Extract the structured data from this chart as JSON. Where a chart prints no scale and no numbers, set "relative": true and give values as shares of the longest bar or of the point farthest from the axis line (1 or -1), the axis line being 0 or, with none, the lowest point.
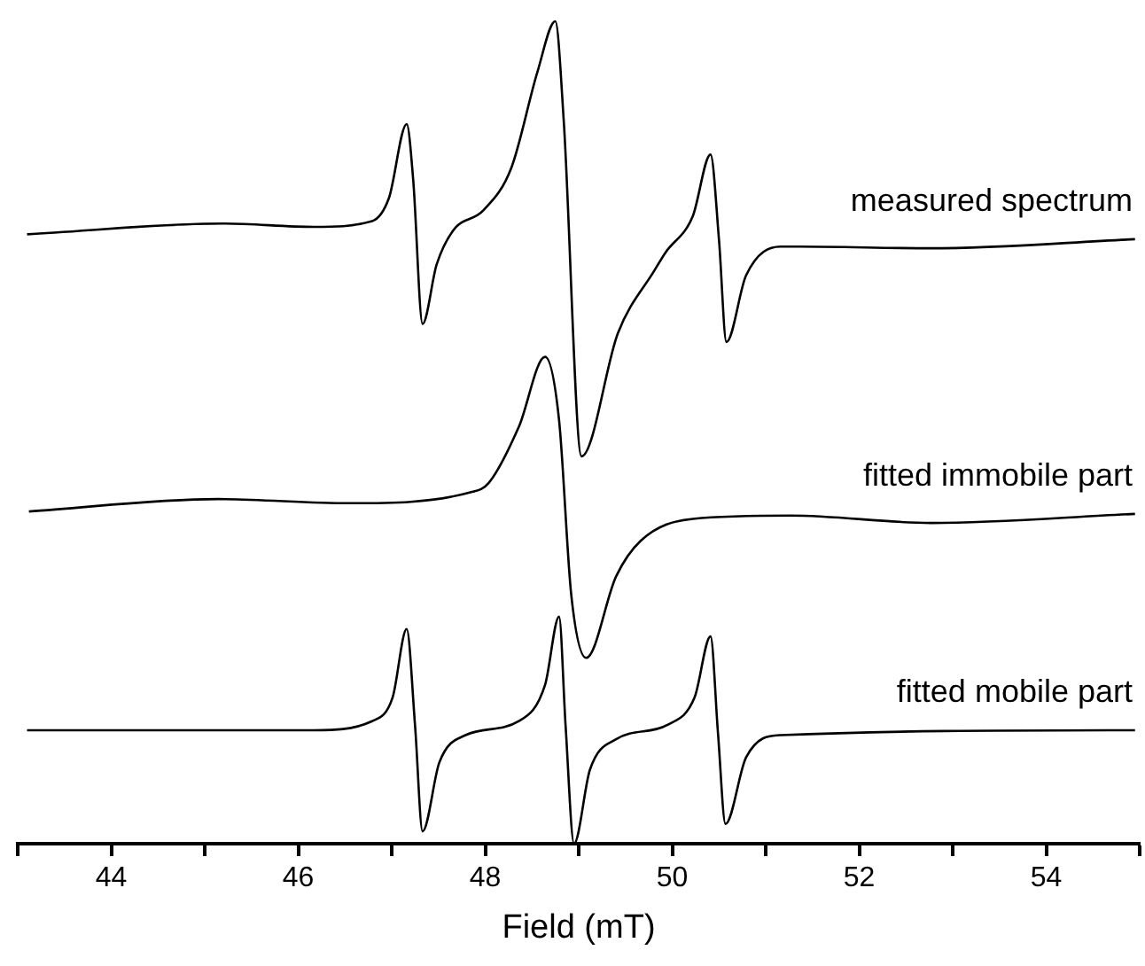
{
  "chart_data": {
    "type": "line",
    "xlabel": "Field (mT)",
    "relative": true,
    "legend": false,
    "marker": "none",
    "line_style": "solid",
    "grid": false,
    "tick_labels": "x",
    "xlim": [
      43,
      55
    ],
    "xticks": [
      {
        "value": 43,
        "label": null
      },
      44,
      {
        "value": 45,
        "label": null
      },
      46,
      {
        "value": 47,
        "label": null
      },
      48,
      {
        "value": 49,
        "label": null
      },
      50,
      {
        "value": 51,
        "label": null
      },
      52,
      {
        "value": 53,
        "label": null
      },
      54,
      {
        "value": 55,
        "label": null
      }
    ],
    "series": [
      {
        "name": "measured spectrum",
        "color": "#000000",
        "x": [
          43.1,
          45.2,
          46.17,
          46.79,
          46.97,
          47.16,
          47.23,
          47.33,
          47.48,
          47.66,
          47.98,
          48.28,
          48.56,
          48.75,
          48.84,
          49.03,
          49.42,
          49.81,
          49.93,
          50.22,
          50.41,
          50.5,
          50.58,
          50.79,
          51.16,
          51.36,
          52.77,
          54.95
        ],
        "values": [
          0.741,
          0.754,
          0.75,
          0.757,
          0.785,
          0.875,
          0.807,
          0.632,
          0.704,
          0.746,
          0.77,
          0.822,
          0.939,
          1,
          0.879,
          0.471,
          0.621,
          0.697,
          0.719,
          0.763,
          0.838,
          0.735,
          0.61,
          0.691,
          0.726,
          0.726,
          0.724,
          0.735
        ]
      },
      {
        "name": "fitted immobile part",
        "color": "#000000",
        "x": [
          43.12,
          45.14,
          46.54,
          47.87,
          48.04,
          48.36,
          48.64,
          48.79,
          48.92,
          49.08,
          49.4,
          49.66,
          50.22,
          51.27,
          52.77,
          54.95
        ],
        "values": [
          0.404,
          0.419,
          0.414,
          0.428,
          0.439,
          0.507,
          0.592,
          0.515,
          0.303,
          0.226,
          0.325,
          0.368,
          0.395,
          0.399,
          0.39,
          0.401
        ]
      },
      {
        "name": "fitted mobile part",
        "color": "#000000",
        "x": [
          43.1,
          46.17,
          46.79,
          47.01,
          47.16,
          47.25,
          47.33,
          47.51,
          47.79,
          48.36,
          48.64,
          48.79,
          48.86,
          48.95,
          49.12,
          49.4,
          49.96,
          50.24,
          50.41,
          50.49,
          50.57,
          50.79,
          51.16,
          54.95
        ],
        "values": [
          0.138,
          0.138,
          0.149,
          0.178,
          0.261,
          0.143,
          0.015,
          0.099,
          0.132,
          0.149,
          0.193,
          0.276,
          0.143,
          0,
          0.09,
          0.127,
          0.145,
          0.178,
          0.252,
          0.134,
          0.024,
          0.105,
          0.132,
          0.138
        ]
      }
    ]
  }
}
